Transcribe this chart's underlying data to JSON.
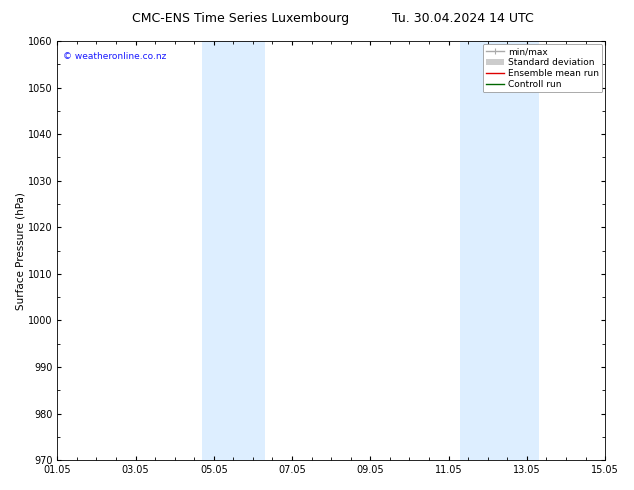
{
  "title_left": "CMC-ENS Time Series Luxembourg",
  "title_right": "Tu. 30.04.2024 14 UTC",
  "ylabel": "Surface Pressure (hPa)",
  "ylim": [
    970,
    1060
  ],
  "yticks": [
    970,
    980,
    990,
    1000,
    1010,
    1020,
    1030,
    1040,
    1050,
    1060
  ],
  "xlim_start": 0,
  "xlim_end": 14,
  "xtick_positions": [
    0,
    2,
    4,
    6,
    8,
    10,
    12,
    14
  ],
  "xtick_labels": [
    "01.05",
    "03.05",
    "05.05",
    "07.05",
    "09.05",
    "11.05",
    "13.05",
    "15.05"
  ],
  "shaded_bands": [
    {
      "x_start": 3.7,
      "x_end": 5.3
    },
    {
      "x_start": 10.3,
      "x_end": 12.3
    }
  ],
  "band_color": "#ddeeff",
  "background_color": "#ffffff",
  "plot_bg_color": "#ffffff",
  "watermark_text": "© weatheronline.co.nz",
  "watermark_color": "#1a1aff",
  "legend_entries": [
    {
      "label": "min/max",
      "color": "#aaaaaa",
      "lw": 1.0
    },
    {
      "label": "Standard deviation",
      "color": "#cccccc",
      "lw": 5
    },
    {
      "label": "Ensemble mean run",
      "color": "#dd0000",
      "lw": 1.0
    },
    {
      "label": "Controll run",
      "color": "#006600",
      "lw": 1.0
    }
  ],
  "title_fontsize": 9,
  "ylabel_fontsize": 7.5,
  "tick_fontsize": 7,
  "legend_fontsize": 6.5,
  "watermark_fontsize": 6.5,
  "spine_color": "#000000",
  "tick_color": "#000000"
}
